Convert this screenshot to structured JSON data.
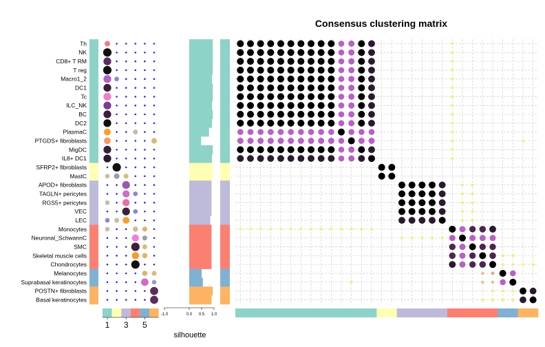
{
  "chart_data": {
    "type": "heatmap",
    "title": "Consensus clustering matrix",
    "xlabel": "silhouette",
    "row_labels": [
      "Th",
      "NK",
      "CD8+ T RM",
      "T reg",
      "Macro1_2",
      "DC1",
      "Tc",
      "ILC_NK",
      "BC",
      "DC2",
      "PlasmaC",
      "PTGDS+ fibroblasts",
      "MigDC",
      "IL8+ DC1",
      "SFRP2+ fibroblasts",
      "MastC",
      "APOD+ fibroblasts",
      "TAGLN+ pericytes",
      "RGS5+ pericytes",
      "VEC",
      "LEC",
      "Monocytes",
      "Neuronal_SchwannC",
      "SMC",
      "Skeletal muscle cells",
      "Chondrocytes",
      "Melanocytes",
      "Suprabasal keratinocytes",
      "POSTN+ fibroblasts",
      "Basal keratinocytes"
    ],
    "cluster_of_row": [
      1,
      1,
      1,
      1,
      1,
      1,
      1,
      1,
      1,
      1,
      1,
      1,
      1,
      1,
      2,
      2,
      3,
      3,
      3,
      3,
      3,
      4,
      4,
      4,
      4,
      4,
      5,
      5,
      6,
      6
    ],
    "cluster_colors": [
      "#8DD3C7",
      "#FFFFB3",
      "#BEBADA",
      "#FB8072",
      "#80B1D3",
      "#FDB462"
    ],
    "k_axis": {
      "ticks": [
        "1",
        "3",
        "5"
      ],
      "tick_k": [
        1,
        3,
        5
      ],
      "num_k": 6
    },
    "dot_plot": [
      {
        "row": 0,
        "k": 1,
        "size": 0.55,
        "color": "#F07E85"
      },
      {
        "row": 1,
        "k": 1,
        "size": 1.0,
        "color": "#111111"
      },
      {
        "row": 2,
        "k": 1,
        "size": 0.9,
        "color": "#5C2C5E"
      },
      {
        "row": 3,
        "k": 1,
        "size": 1.0,
        "color": "#111111"
      },
      {
        "row": 4,
        "k": 1,
        "size": 0.9,
        "color": "#B45FC7"
      },
      {
        "row": 4,
        "k": 2,
        "size": 0.4,
        "color": "#8A86D8"
      },
      {
        "row": 5,
        "k": 1,
        "size": 0.9,
        "color": "#3C1F3E"
      },
      {
        "row": 6,
        "k": 1,
        "size": 0.9,
        "color": "#F07EC4"
      },
      {
        "row": 7,
        "k": 1,
        "size": 0.9,
        "color": "#7C3C8C"
      },
      {
        "row": 8,
        "k": 1,
        "size": 0.9,
        "color": "#3C1F3E"
      },
      {
        "row": 9,
        "k": 1,
        "size": 0.9,
        "color": "#111111"
      },
      {
        "row": 10,
        "k": 1,
        "size": 0.75,
        "color": "#F5A02C"
      },
      {
        "row": 10,
        "k": 4,
        "size": 0.45,
        "color": "#C9BCA4"
      },
      {
        "row": 11,
        "k": 1,
        "size": 0.75,
        "color": "#F4996A"
      },
      {
        "row": 11,
        "k": 6,
        "size": 0.55,
        "color": "#D7B97E"
      },
      {
        "row": 12,
        "k": 1,
        "size": 0.9,
        "color": "#3C1F3E"
      },
      {
        "row": 13,
        "k": 1,
        "size": 0.9,
        "color": "#2A1A30"
      },
      {
        "row": 14,
        "k": 2,
        "size": 1.0,
        "color": "#111111"
      },
      {
        "row": 15,
        "k": 1,
        "size": 0.4,
        "color": "#C9BCA4"
      },
      {
        "row": 15,
        "k": 2,
        "size": 0.55,
        "color": "#9A9DB0"
      },
      {
        "row": 15,
        "k": 3,
        "size": 0.45,
        "color": "#D8BC7C"
      },
      {
        "row": 16,
        "k": 3,
        "size": 0.9,
        "color": "#9A5AAA"
      },
      {
        "row": 17,
        "k": 3,
        "size": 0.8,
        "color": "#D06DC8"
      },
      {
        "row": 17,
        "k": 4,
        "size": 0.4,
        "color": "#8A86D8"
      },
      {
        "row": 18,
        "k": 1,
        "size": 0.4,
        "color": "#C9BCA4"
      },
      {
        "row": 18,
        "k": 3,
        "size": 0.8,
        "color": "#E8709E"
      },
      {
        "row": 19,
        "k": 3,
        "size": 0.9,
        "color": "#3C1F3E"
      },
      {
        "row": 19,
        "k": 4,
        "size": 0.4,
        "color": "#8A86D8"
      },
      {
        "row": 20,
        "k": 1,
        "size": 0.4,
        "color": "#8A86D8"
      },
      {
        "row": 20,
        "k": 2,
        "size": 0.45,
        "color": "#C9BCA4"
      },
      {
        "row": 20,
        "k": 3,
        "size": 0.75,
        "color": "#F5A02C"
      },
      {
        "row": 21,
        "k": 1,
        "size": 0.4,
        "color": "#C9BCA4"
      },
      {
        "row": 21,
        "k": 4,
        "size": 0.5,
        "color": "#C9BCA4"
      },
      {
        "row": 21,
        "k": 5,
        "size": 0.45,
        "color": "#E2B36A"
      },
      {
        "row": 22,
        "k": 4,
        "size": 0.8,
        "color": "#F07EE0"
      },
      {
        "row": 22,
        "k": 5,
        "size": 0.45,
        "color": "#9A9DB0"
      },
      {
        "row": 23,
        "k": 4,
        "size": 1.0,
        "color": "#3C1F3E"
      },
      {
        "row": 23,
        "k": 5,
        "size": 0.45,
        "color": "#D8BC7C"
      },
      {
        "row": 24,
        "k": 4,
        "size": 0.8,
        "color": "#F59A2C"
      },
      {
        "row": 24,
        "k": 5,
        "size": 0.5,
        "color": "#E2B36A"
      },
      {
        "row": 25,
        "k": 4,
        "size": 1.0,
        "color": "#111111"
      },
      {
        "row": 26,
        "k": 5,
        "size": 0.5,
        "color": "#E2B36A"
      },
      {
        "row": 26,
        "k": 6,
        "size": 0.45,
        "color": "#D8BC7C"
      },
      {
        "row": 27,
        "k": 5,
        "size": 0.85,
        "color": "#D06DC8"
      },
      {
        "row": 27,
        "k": 6,
        "size": 0.4,
        "color": "#9A9DB0"
      },
      {
        "row": 28,
        "k": 6,
        "size": 0.95,
        "color": "#5C2C5E"
      },
      {
        "row": 29,
        "k": 6,
        "size": 0.95,
        "color": "#5C2C5E"
      }
    ],
    "silhouette": {
      "axis_ticks": [
        "-1.0",
        "0.0",
        "0.5",
        "1.0"
      ],
      "tick_values": [
        -1.0,
        0.0,
        0.5,
        1.0
      ],
      "range": [
        -1.0,
        1.0
      ],
      "values": [
        0.95,
        0.95,
        0.95,
        0.95,
        0.92,
        0.95,
        0.95,
        0.92,
        0.95,
        0.92,
        0.8,
        0.48,
        0.95,
        0.92,
        0.95,
        0.95,
        0.9,
        0.9,
        0.9,
        0.9,
        0.85,
        0.9,
        0.9,
        0.9,
        0.9,
        0.9,
        0.5,
        0.55,
        0.95,
        0.9
      ]
    },
    "consensus": {
      "blocks": [
        [
          0,
          13
        ],
        [
          14,
          15
        ],
        [
          16,
          20
        ],
        [
          21,
          25
        ],
        [
          26,
          27
        ],
        [
          28,
          29
        ]
      ],
      "within": [
        [
          1,
          1,
          1,
          1,
          1,
          1,
          1,
          1,
          1,
          1,
          0.6,
          0.7,
          1,
          0.95
        ],
        [
          1,
          1
        ],
        [
          1,
          1,
          1,
          1,
          0.95
        ],
        [
          0.95,
          0.7,
          0.8,
          0.85,
          1
        ],
        [
          1,
          0.6
        ],
        [
          0.9,
          1
        ]
      ],
      "weak": [
        [
          0,
          21,
          0.12
        ],
        [
          1,
          21,
          0.1
        ],
        [
          2,
          21,
          0.1
        ],
        [
          3,
          21,
          0.12
        ],
        [
          4,
          21,
          0.12
        ],
        [
          5,
          21,
          0.1
        ],
        [
          6,
          21,
          0.1
        ],
        [
          7,
          21,
          0.1
        ],
        [
          8,
          21,
          0.12
        ],
        [
          9,
          21,
          0.1
        ],
        [
          10,
          21,
          0.1
        ],
        [
          11,
          21,
          0.12
        ],
        [
          12,
          21,
          0.12
        ],
        [
          13,
          21,
          0.1
        ],
        [
          11,
          28,
          0.1
        ],
        [
          27,
          11,
          0.1
        ],
        [
          16,
          22,
          0.1
        ],
        [
          17,
          22,
          0.1
        ],
        [
          18,
          22,
          0.12
        ],
        [
          19,
          22,
          0.1
        ],
        [
          20,
          22,
          0.1
        ],
        [
          16,
          23,
          0.1
        ],
        [
          17,
          23,
          0.1
        ],
        [
          18,
          23,
          0.1
        ],
        [
          19,
          23,
          0.1
        ],
        [
          20,
          23,
          0.1
        ],
        [
          21,
          0,
          0.1
        ],
        [
          21,
          1,
          0.1
        ],
        [
          21,
          2,
          0.1
        ],
        [
          21,
          3,
          0.1
        ],
        [
          21,
          4,
          0.1
        ],
        [
          21,
          5,
          0.1
        ],
        [
          21,
          6,
          0.1
        ],
        [
          21,
          7,
          0.1
        ],
        [
          21,
          8,
          0.1
        ],
        [
          21,
          9,
          0.1
        ],
        [
          21,
          10,
          0.1
        ],
        [
          21,
          11,
          0.1
        ],
        [
          21,
          12,
          0.1
        ],
        [
          21,
          13,
          0.1
        ],
        [
          22,
          16,
          0.1
        ],
        [
          22,
          17,
          0.1
        ],
        [
          22,
          18,
          0.1
        ],
        [
          22,
          19,
          0.1
        ],
        [
          22,
          20,
          0.1
        ],
        [
          24,
          26,
          0.1
        ],
        [
          24,
          27,
          0.12
        ],
        [
          25,
          26,
          0.1
        ],
        [
          25,
          27,
          0.1
        ],
        [
          25,
          28,
          0.1
        ],
        [
          25,
          29,
          0.15
        ],
        [
          26,
          24,
          0.25
        ],
        [
          26,
          25,
          0.3
        ],
        [
          27,
          24,
          0.22
        ],
        [
          27,
          25,
          0.2
        ],
        [
          28,
          25,
          0.1
        ],
        [
          28,
          26,
          0.1
        ],
        [
          28,
          27,
          0.1
        ],
        [
          29,
          24,
          0.1
        ],
        [
          29,
          25,
          0.1
        ],
        [
          29,
          26,
          0.12
        ],
        [
          29,
          27,
          0.1
        ]
      ]
    }
  }
}
